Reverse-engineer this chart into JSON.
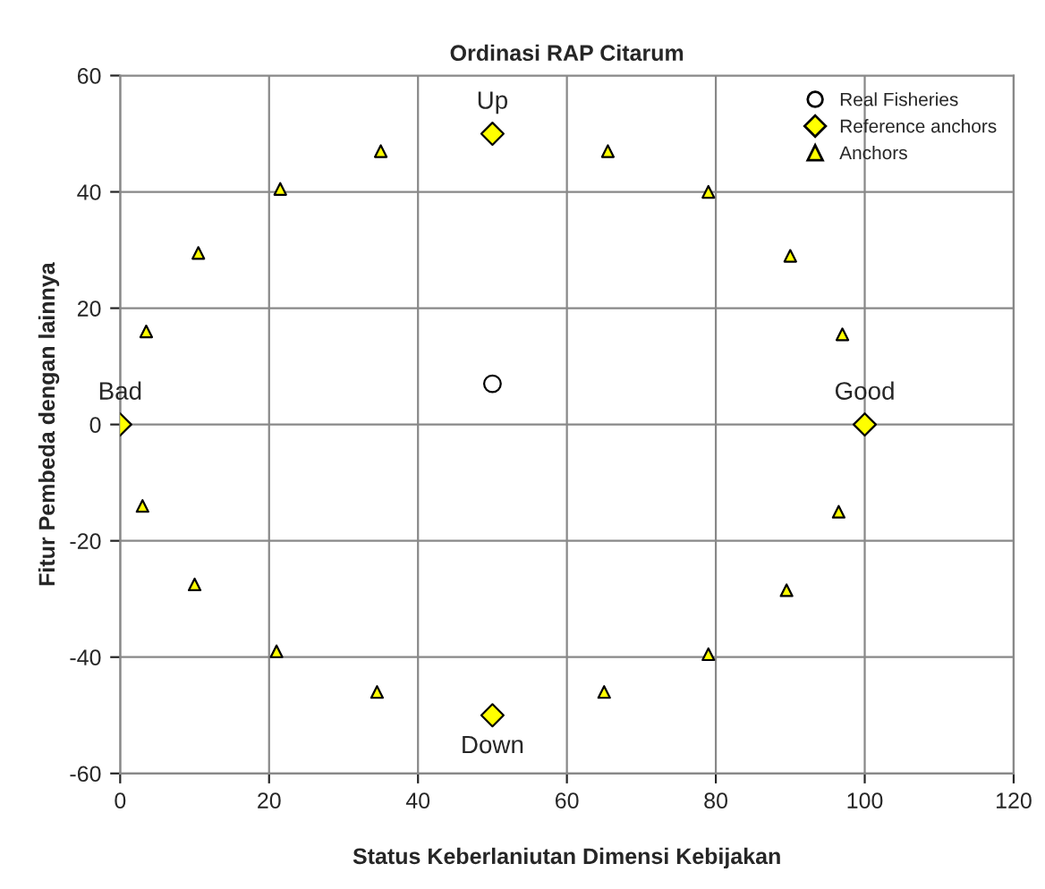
{
  "chart_data": {
    "type": "scatter",
    "title": "Ordinasi RAP Citarum",
    "xlabel": "Status Keberlaniutan Dimensi Kebijakan",
    "ylabel": "Fitur Pembeda dengan lainnya",
    "xlim": [
      0,
      120
    ],
    "xticks": [
      0,
      20,
      40,
      60,
      80,
      100,
      120
    ],
    "ylim": [
      -60,
      60
    ],
    "yticks": [
      -60,
      -40,
      -20,
      0,
      20,
      40,
      60
    ],
    "grid": true,
    "legend": "top right",
    "series": [
      {
        "name": "Real Fisheries",
        "color": "#ffffff",
        "marker": "circle",
        "x": [
          50
        ],
        "values": [
          7
        ]
      },
      {
        "name": "Reference anchors",
        "color": "#ffff00",
        "marker": "diamond",
        "x": [
          0,
          100,
          50,
          50
        ],
        "values": [
          0,
          0,
          50,
          -50
        ]
      },
      {
        "name": "Anchors",
        "color": "#ffff00",
        "marker": "triangle",
        "x": [
          3.5,
          10.5,
          21.5,
          35,
          65.5,
          79,
          90,
          97,
          96.5,
          89.5,
          79,
          65,
          34.5,
          21,
          10,
          3
        ],
        "values": [
          16,
          29.5,
          40.5,
          47,
          47,
          40,
          29,
          15.5,
          -15,
          -28.5,
          -39.5,
          -46,
          -46,
          -39,
          -27.5,
          -14
        ]
      }
    ],
    "annotations": [
      {
        "text": "Up",
        "x": 50,
        "y": 50
      },
      {
        "text": "Down",
        "x": 50,
        "y": -50
      },
      {
        "text": "Bad",
        "x": 0,
        "y": 0
      },
      {
        "text": "Good",
        "x": 100,
        "y": 0
      }
    ]
  }
}
